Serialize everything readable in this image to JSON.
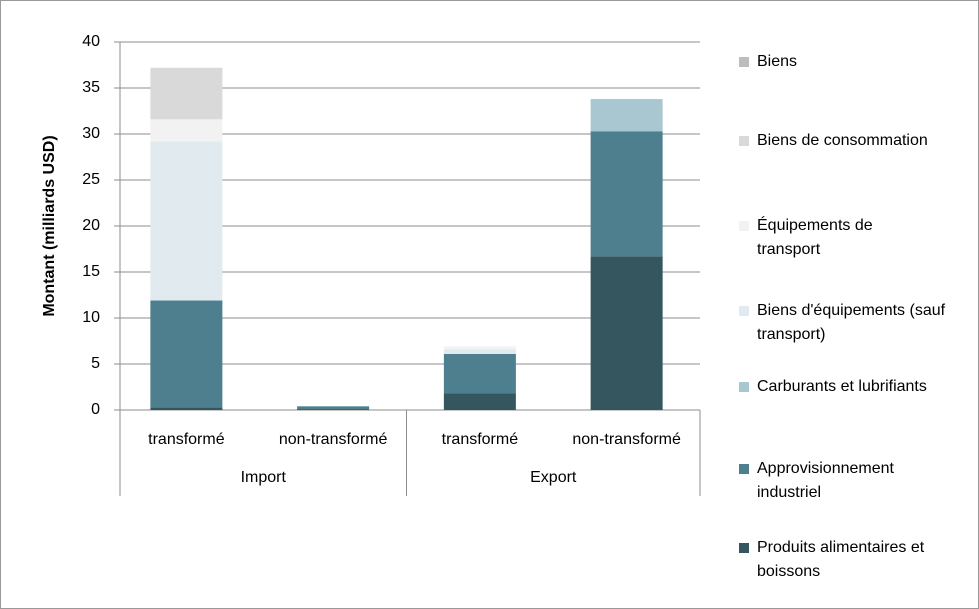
{
  "chart_data": {
    "type": "stacked_bar",
    "y_label": "Montant (milliards USD)",
    "categories": [
      "transformé",
      "non-transformé",
      "transformé",
      "non-transformé"
    ],
    "groups": [
      {
        "name": "Import",
        "count": 2
      },
      {
        "name": "Export",
        "count": 2
      }
    ],
    "series": [
      {
        "name": "Produits alimentaires et boissons",
        "color": "#35555f",
        "values": [
          0.3,
          0.1,
          1.8,
          16.7
        ]
      },
      {
        "name": "Approvisionnement industriel",
        "color": "#4e7f8f",
        "values": [
          11.6,
          0.3,
          4.3,
          13.6
        ]
      },
      {
        "name": "Carburants et lubrifiants",
        "color": "#a9c7d0",
        "values": [
          0,
          0,
          0,
          3.5
        ]
      },
      {
        "name": "Biens d'équipements (sauf transport)",
        "color": "#e1eaee",
        "values": [
          17.3,
          0,
          0.5,
          0
        ]
      },
      {
        "name": "Équipements de transport",
        "color": "#f2f2f2",
        "values": [
          2.4,
          0,
          0.3,
          0
        ]
      },
      {
        "name": "Biens de consommation",
        "color": "#d9d9d9",
        "values": [
          5.6,
          0,
          0,
          0
        ]
      },
      {
        "name": "Biens",
        "color": "#bdbdbd",
        "values": [
          0,
          0,
          0,
          0
        ]
      }
    ],
    "ylim": [
      0,
      40
    ],
    "yticks": [
      0,
      5,
      10,
      15,
      20,
      25,
      30,
      35,
      40
    ],
    "grid": true
  }
}
